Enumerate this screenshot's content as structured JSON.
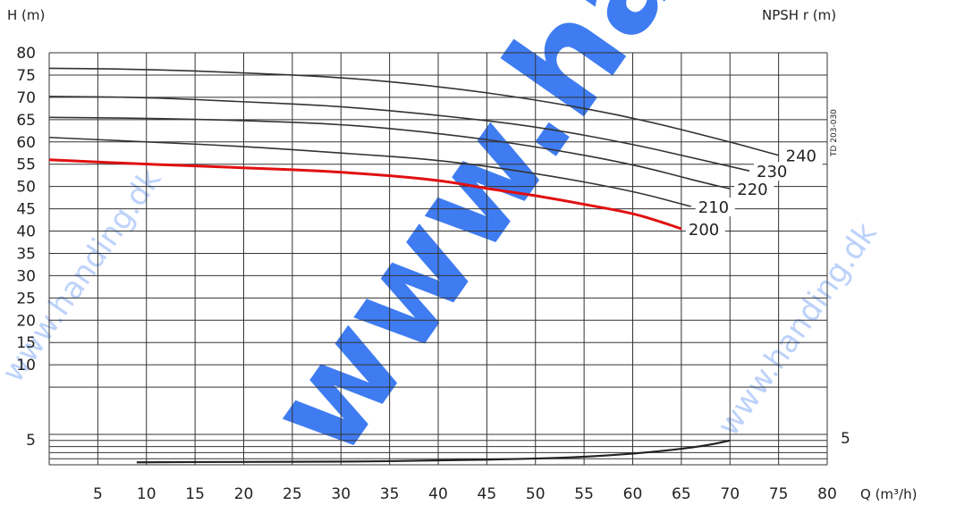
{
  "chart_data": {
    "type": "line",
    "ylabel": "H (m)",
    "y2label": "NPSH r (m)",
    "xlabel": "Q (m³/h)",
    "xlim": [
      0,
      80
    ],
    "ylim": [
      0,
      80
    ],
    "x_ticks": [
      "5",
      "10",
      "15",
      "20",
      "25",
      "30",
      "35",
      "40",
      "45",
      "50",
      "55",
      "60",
      "65",
      "70",
      "75",
      "80"
    ],
    "y_ticks": [
      "5",
      "10",
      "15",
      "20",
      "25",
      "30",
      "35",
      "40",
      "45",
      "50",
      "55",
      "60",
      "65",
      "70",
      "75",
      "80"
    ],
    "y2_ticks": [
      "5"
    ],
    "grid": true,
    "annotation": "TD 203-030",
    "series": [
      {
        "name": "240",
        "color": "#333333",
        "x": [
          0,
          10,
          20,
          30,
          40,
          50,
          60,
          70,
          75
        ],
        "y": [
          76.5,
          76.3,
          75.5,
          74.5,
          72.5,
          69.5,
          65.5,
          60,
          57
        ]
      },
      {
        "name": "230",
        "color": "#333333",
        "x": [
          0,
          10,
          20,
          30,
          40,
          50,
          60,
          67,
          72
        ],
        "y": [
          70.2,
          70,
          69,
          68,
          66,
          63.5,
          59.5,
          56,
          53.5
        ]
      },
      {
        "name": "220",
        "color": "#333333",
        "x": [
          0,
          10,
          20,
          30,
          40,
          50,
          60,
          67,
          70
        ],
        "y": [
          65.5,
          65.3,
          64.8,
          64,
          62,
          59,
          55,
          51,
          49.5
        ]
      },
      {
        "name": "210",
        "color": "#333333",
        "x": [
          0,
          10,
          20,
          30,
          40,
          50,
          60,
          66
        ],
        "y": [
          61,
          60,
          59,
          57.5,
          56,
          53,
          49,
          45.5
        ]
      },
      {
        "name": "200",
        "color": "#e01010",
        "highlight": true,
        "x": [
          0,
          10,
          20,
          30,
          40,
          45,
          50,
          55,
          60,
          63,
          65
        ],
        "y": [
          56,
          55,
          54.2,
          53.3,
          51.5,
          49.5,
          48,
          46,
          44,
          42,
          40.5
        ]
      }
    ],
    "npsh_series": {
      "name": "NPSH r",
      "x": [
        9,
        20,
        30,
        40,
        50,
        55,
        60,
        65,
        68,
        70
      ],
      "y": [
        0.4,
        0.5,
        0.5,
        0.7,
        1.0,
        1.3,
        1.8,
        2.6,
        3.3,
        4.0
      ]
    }
  },
  "watermark": "www.handing.dk"
}
